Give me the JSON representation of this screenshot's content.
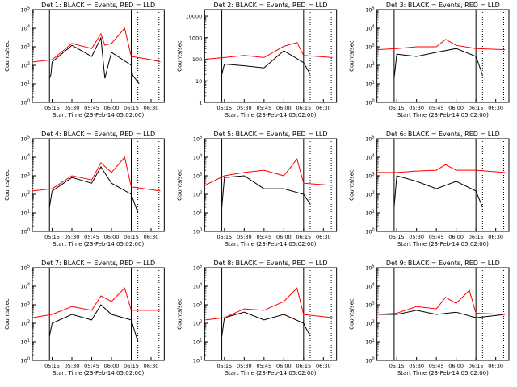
{
  "figure": {
    "background": "#ffffff"
  },
  "colors": {
    "events": "#000000",
    "lld": "#ff0000",
    "axes": "#000000"
  },
  "chart_data": [
    {
      "type": "line",
      "log_y": true,
      "title": "Det 1: BLACK = Events, RED = LLD",
      "xlabel": "Start Time (23-Feb-14 05:02:00)",
      "ylabel": "Counts/sec",
      "x_ticks": [
        "05:15",
        "05:30",
        "05:45",
        "06:00",
        "06:15",
        "06:30"
      ],
      "y_ticks": [
        "10^0",
        "10^1",
        "10^2",
        "10^3",
        "10^4",
        "10^5"
      ],
      "ylim": [
        1,
        100000
      ],
      "grid": false,
      "series": [
        {
          "name": "BLACK = Events",
          "x": [
            "05:13",
            "05:14",
            "05:15",
            "05:30",
            "05:45",
            "05:52",
            "05:55",
            "06:00",
            "06:15",
            "06:16",
            "06:21"
          ],
          "values": [
            20,
            30,
            150,
            1200,
            300,
            3000,
            20,
            500,
            100,
            30,
            10
          ]
        },
        {
          "name": "RED = LLD",
          "x": [
            "05:00",
            "05:15",
            "05:30",
            "05:45",
            "05:52",
            "05:55",
            "06:00",
            "06:10",
            "06:15",
            "06:30",
            "06:37"
          ],
          "values": [
            150,
            200,
            1500,
            800,
            5000,
            1200,
            1500,
            10000,
            300,
            200,
            150
          ]
        }
      ]
    },
    {
      "type": "line",
      "log_y": true,
      "title": "Det 2: BLACK = Events, RED = LLD",
      "xlabel": "Start Time (23-Feb-14 05:02:00)",
      "ylabel": "Counts/sec",
      "x_ticks": [
        "05:15",
        "05:30",
        "05:45",
        "06:00",
        "06:15",
        "06:30"
      ],
      "y_ticks": [
        "1",
        "10",
        "100",
        "1000",
        "10000"
      ],
      "ylim": [
        1,
        20000
      ],
      "grid": false,
      "series": [
        {
          "name": "BLACK = Events",
          "x": [
            "05:13",
            "05:15",
            "05:30",
            "05:45",
            "06:00",
            "06:15",
            "06:20"
          ],
          "values": [
            20,
            60,
            50,
            40,
            250,
            70,
            20
          ]
        },
        {
          "name": "RED = LLD",
          "x": [
            "05:00",
            "05:15",
            "05:30",
            "05:45",
            "06:00",
            "06:10",
            "06:15",
            "06:37"
          ],
          "values": [
            100,
            120,
            150,
            120,
            400,
            600,
            150,
            120
          ]
        }
      ]
    },
    {
      "type": "line",
      "log_y": true,
      "title": "Det 3: BLACK = Events, RED = LLD",
      "xlabel": "Start Time (23-Feb-14 05:02:00)",
      "ylabel": "Counts/sec",
      "x_ticks": [
        "05:15",
        "05:30",
        "05:45",
        "06:00",
        "06:15",
        "06:30"
      ],
      "y_ticks": [
        "10^0",
        "10^1",
        "10^2",
        "10^3",
        "10^4",
        "10^5"
      ],
      "ylim": [
        1,
        100000
      ],
      "grid": false,
      "series": [
        {
          "name": "BLACK = Events",
          "x": [
            "05:13",
            "05:15",
            "05:30",
            "05:45",
            "06:00",
            "06:15",
            "06:20"
          ],
          "values": [
            20,
            400,
            300,
            500,
            800,
            300,
            30
          ]
        },
        {
          "name": "RED = LLD",
          "x": [
            "05:00",
            "05:15",
            "05:30",
            "05:45",
            "05:52",
            "06:00",
            "06:15",
            "06:37"
          ],
          "values": [
            700,
            800,
            1000,
            1000,
            2500,
            1200,
            800,
            700
          ]
        }
      ]
    },
    {
      "type": "line",
      "log_y": true,
      "title": "Det 4: BLACK = Events, RED = LLD",
      "xlabel": "Start Time (23-Feb-14 05:02:00)",
      "ylabel": "Counts/sec",
      "x_ticks": [
        "05:15",
        "05:30",
        "05:45",
        "06:00",
        "06:15",
        "06:30"
      ],
      "y_ticks": [
        "10^0",
        "10^1",
        "10^2",
        "10^3",
        "10^4",
        "10^5"
      ],
      "ylim": [
        1,
        100000
      ],
      "grid": false,
      "series": [
        {
          "name": "BLACK = Events",
          "x": [
            "05:13",
            "05:15",
            "05:30",
            "05:45",
            "05:52",
            "06:00",
            "06:15",
            "06:20"
          ],
          "values": [
            20,
            150,
            800,
            400,
            3000,
            400,
            100,
            10
          ]
        },
        {
          "name": "RED = LLD",
          "x": [
            "05:00",
            "05:15",
            "05:30",
            "05:45",
            "05:52",
            "06:00",
            "06:10",
            "06:15",
            "06:37"
          ],
          "values": [
            150,
            200,
            1000,
            600,
            5000,
            1500,
            10000,
            250,
            150
          ]
        }
      ]
    },
    {
      "type": "line",
      "log_y": true,
      "title": "Det 5: BLACK = Events, RED = LLD",
      "xlabel": "Start Time (23-Feb-14 05:02:00)",
      "ylabel": "Counts/sec",
      "x_ticks": [
        "05:15",
        "05:30",
        "05:45",
        "06:00",
        "06:15",
        "06:30"
      ],
      "y_ticks": [
        "10^0",
        "10^1",
        "10^2",
        "10^3",
        "10^4",
        "10^5"
      ],
      "ylim": [
        1,
        100000
      ],
      "grid": false,
      "series": [
        {
          "name": "BLACK = Events",
          "x": [
            "05:13",
            "05:15",
            "05:30",
            "05:45",
            "06:00",
            "06:15",
            "06:20"
          ],
          "values": [
            20,
            800,
            1000,
            200,
            200,
            100,
            30
          ]
        },
        {
          "name": "RED = LLD",
          "x": [
            "05:00",
            "05:15",
            "05:30",
            "05:45",
            "06:00",
            "06:10",
            "06:15",
            "06:37"
          ],
          "values": [
            300,
            1000,
            1500,
            2000,
            1000,
            8000,
            400,
            300
          ]
        }
      ]
    },
    {
      "type": "line",
      "log_y": true,
      "title": "Det 6: BLACK = Events, RED = LLD",
      "xlabel": "Start Time (23-Feb-14 05:02:00)",
      "ylabel": "Counts/sec",
      "x_ticks": [
        "05:15",
        "05:30",
        "05:45",
        "06:00",
        "06:15",
        "06:30"
      ],
      "y_ticks": [
        "10^0",
        "10^1",
        "10^2",
        "10^3",
        "10^4",
        "10^5"
      ],
      "ylim": [
        1,
        100000
      ],
      "grid": false,
      "series": [
        {
          "name": "BLACK = Events",
          "x": [
            "05:13",
            "05:15",
            "05:30",
            "05:45",
            "06:00",
            "06:15",
            "06:20"
          ],
          "values": [
            20,
            1000,
            500,
            200,
            500,
            150,
            20
          ]
        },
        {
          "name": "RED = LLD",
          "x": [
            "05:00",
            "05:15",
            "05:30",
            "05:45",
            "05:52",
            "06:00",
            "06:15",
            "06:37"
          ],
          "values": [
            1500,
            1500,
            1800,
            2000,
            4000,
            2000,
            2000,
            1500
          ]
        }
      ]
    },
    {
      "type": "line",
      "log_y": true,
      "title": "Det 7: BLACK = Events, RED = LLD",
      "xlabel": "Start Time (23-Feb-14 05:02:00)",
      "ylabel": "Counts/sec",
      "x_ticks": [
        "05:15",
        "05:30",
        "05:45",
        "06:00",
        "06:15",
        "06:30"
      ],
      "y_ticks": [
        "10^0",
        "10^1",
        "10^2",
        "10^3",
        "10^4",
        "10^5"
      ],
      "ylim": [
        1,
        100000
      ],
      "grid": false,
      "series": [
        {
          "name": "BLACK = Events",
          "x": [
            "05:13",
            "05:15",
            "05:30",
            "05:45",
            "05:52",
            "06:00",
            "06:15",
            "06:20"
          ],
          "values": [
            20,
            100,
            300,
            150,
            1000,
            300,
            150,
            10
          ]
        },
        {
          "name": "RED = LLD",
          "x": [
            "05:00",
            "05:15",
            "05:30",
            "05:45",
            "05:52",
            "06:00",
            "06:10",
            "06:15",
            "06:37"
          ],
          "values": [
            200,
            300,
            800,
            500,
            3000,
            1500,
            8000,
            500,
            500
          ]
        }
      ]
    },
    {
      "type": "line",
      "log_y": true,
      "title": "Det 8: BLACK = Events, RED = LLD",
      "xlabel": "Start Time (23-Feb-14 05:02:00)",
      "ylabel": "Counts/sec",
      "x_ticks": [
        "05:15",
        "05:30",
        "05:45",
        "06:00",
        "06:15",
        "06:30"
      ],
      "y_ticks": [
        "10^0",
        "10^1",
        "10^2",
        "10^3",
        "10^4",
        "10^5"
      ],
      "ylim": [
        1,
        100000
      ],
      "grid": false,
      "series": [
        {
          "name": "BLACK = Events",
          "x": [
            "05:13",
            "05:15",
            "05:30",
            "05:45",
            "06:00",
            "06:15",
            "06:20"
          ],
          "values": [
            20,
            200,
            400,
            150,
            300,
            100,
            20
          ]
        },
        {
          "name": "RED = LLD",
          "x": [
            "05:00",
            "05:15",
            "05:30",
            "05:45",
            "06:00",
            "06:10",
            "06:15",
            "06:37"
          ],
          "values": [
            150,
            200,
            600,
            500,
            1500,
            8000,
            300,
            200
          ]
        }
      ]
    },
    {
      "type": "line",
      "log_y": true,
      "title": "Det 9: BLACK = Events, RED = LLD",
      "xlabel": "Start Time (23-Feb-14 05:02:00)",
      "ylabel": "Counts/sec",
      "x_ticks": [
        "05:15",
        "05:30",
        "05:45",
        "06:00",
        "06:15",
        "06:30"
      ],
      "y_ticks": [
        "10^0",
        "10^1",
        "10^2",
        "10^3",
        "10^4",
        "10^5"
      ],
      "ylim": [
        1,
        100000
      ],
      "grid": false,
      "series": [
        {
          "name": "BLACK = Events",
          "x": [
            "05:00",
            "05:15",
            "05:30",
            "05:45",
            "06:00",
            "06:15",
            "06:37"
          ],
          "values": [
            300,
            300,
            500,
            300,
            400,
            200,
            300
          ]
        },
        {
          "name": "RED = LLD",
          "x": [
            "05:00",
            "05:15",
            "05:30",
            "05:45",
            "05:52",
            "06:00",
            "06:10",
            "06:15",
            "06:37"
          ],
          "values": [
            300,
            350,
            800,
            600,
            2500,
            1200,
            6000,
            350,
            300
          ]
        }
      ]
    }
  ]
}
